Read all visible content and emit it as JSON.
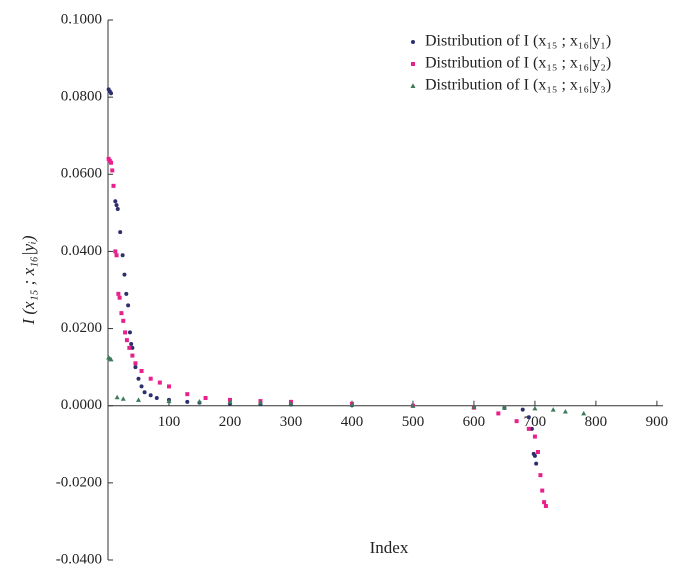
{
  "chart_data": {
    "type": "scatter",
    "xlabel": "Index",
    "ylabel": "I (x₁₅ ; x₁₆|yᵢ)",
    "xlim": [
      0,
      910
    ],
    "ylim": [
      -0.04,
      0.1
    ],
    "xticks": [
      100,
      200,
      300,
      400,
      500,
      600,
      700,
      800,
      900
    ],
    "yticks": [
      {
        "value": -0.04,
        "label": "-0.0400"
      },
      {
        "value": -0.02,
        "label": "-0.0200"
      },
      {
        "value": 0,
        "label": "0.0000"
      },
      {
        "value": 0.02,
        "label": "0.0200"
      },
      {
        "value": 0.04,
        "label": "0.0400"
      },
      {
        "value": 0.06,
        "label": "0.0600"
      },
      {
        "value": 0.08,
        "label": "0.0800"
      },
      {
        "value": 0.1,
        "label": "0.1000"
      }
    ],
    "legend": "top-right",
    "series": [
      {
        "name": "Distribution of I (x₁₅ ; x₁₆|y₁)",
        "color": "#2e2f6e",
        "marker": "circle",
        "x": [
          1,
          3,
          5,
          12,
          14,
          16,
          20,
          24,
          27,
          30,
          33,
          36,
          38,
          40,
          45,
          50,
          55,
          60,
          70,
          80,
          100,
          130,
          150,
          200,
          250,
          300,
          400,
          500,
          600,
          650,
          680,
          690,
          695,
          698,
          700,
          702
        ],
        "values": [
          0.082,
          0.0815,
          0.081,
          0.053,
          0.052,
          0.051,
          0.045,
          0.039,
          0.034,
          0.029,
          0.026,
          0.019,
          0.016,
          0.015,
          0.01,
          0.007,
          0.005,
          0.0035,
          0.0027,
          0.002,
          0.0015,
          0.001,
          0.0008,
          0.0005,
          0.0004,
          0.0003,
          0.0001,
          0,
          -0.0003,
          -0.0006,
          -0.001,
          -0.003,
          -0.006,
          -0.0125,
          -0.013,
          -0.015
        ]
      },
      {
        "name": "Distribution of I (x₁₅ ; x₁₆|y₂)",
        "color": "#e8208c",
        "marker": "square",
        "x": [
          1,
          3,
          5,
          7,
          9,
          12,
          14,
          17,
          19,
          22,
          25,
          28,
          31,
          35,
          40,
          45,
          55,
          70,
          85,
          100,
          130,
          160,
          200,
          250,
          300,
          400,
          500,
          600,
          640,
          670,
          690,
          700,
          705,
          709,
          712,
          715,
          718
        ],
        "values": [
          0.064,
          0.0635,
          0.063,
          0.061,
          0.057,
          0.04,
          0.039,
          0.029,
          0.028,
          0.024,
          0.022,
          0.019,
          0.017,
          0.015,
          0.013,
          0.011,
          0.009,
          0.007,
          0.006,
          0.005,
          0.003,
          0.002,
          0.0015,
          0.0012,
          0.001,
          0.0005,
          0,
          -0.0005,
          -0.002,
          -0.004,
          -0.006,
          -0.008,
          -0.012,
          -0.018,
          -0.022,
          -0.025,
          -0.026
        ]
      },
      {
        "name": "Distribution of I (x₁₅ ; x₁₆|y₃)",
        "color": "#3c7a5a",
        "marker": "triangle",
        "x": [
          1,
          3,
          5,
          15,
          25,
          50,
          100,
          150,
          200,
          250,
          300,
          400,
          500,
          600,
          650,
          700,
          730,
          750,
          780
        ],
        "values": [
          0.0125,
          0.0122,
          0.012,
          0.0022,
          0.0018,
          0.0015,
          0.0012,
          0.0011,
          0.001,
          0.0008,
          0.0006,
          0.0003,
          0,
          -0.0003,
          -0.0005,
          -0.0007,
          -0.001,
          -0.0015,
          -0.002
        ]
      }
    ]
  }
}
